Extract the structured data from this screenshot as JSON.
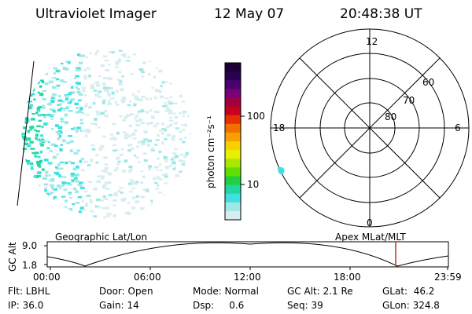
{
  "header": {
    "title": "Ultraviolet Imager",
    "date": "12 May 07",
    "time": "20:48:38 UT"
  },
  "colorbar": {
    "unit_label": "photon cm⁻²s⁻¹",
    "ticks": [
      "100",
      "10"
    ],
    "colors": [
      "#1a0033",
      "#2a0050",
      "#4a0070",
      "#7a007a",
      "#a00040",
      "#c80020",
      "#e83000",
      "#f07000",
      "#f8a000",
      "#f8d000",
      "#e8f000",
      "#a8e800",
      "#60e000",
      "#20d040",
      "#20d8a0",
      "#40e0e0",
      "#a0e8e8",
      "#d8eeee"
    ]
  },
  "polar": {
    "labels": {
      "top": "12",
      "bottom": "0",
      "left": "18",
      "right": "6"
    },
    "lat_labels": [
      "60",
      "70",
      "80"
    ]
  },
  "plot": {
    "left_label": "Geographic Lat/Lon",
    "right_label": "Apex MLat/MLT",
    "y_axis_title": "GC Alt",
    "y_ticks": [
      "9.0",
      "1.8"
    ],
    "x_ticks": [
      "00:00",
      "06:00",
      "12:00",
      "18:00",
      "23:59"
    ],
    "marker_color": "#c83018"
  },
  "status": {
    "flt": "Flt: LBHL",
    "door": "Door: Open",
    "mode": "Mode: Normal",
    "gcalt": "GC Alt: 2.1 Re",
    "glat": "GLat:  46.2",
    "ip": "IP: 36.0",
    "gain": "Gain: 14",
    "dsp": "Dsp:     0.6",
    "seq": "Seq: 39",
    "glon": "GLon: 324.8"
  }
}
